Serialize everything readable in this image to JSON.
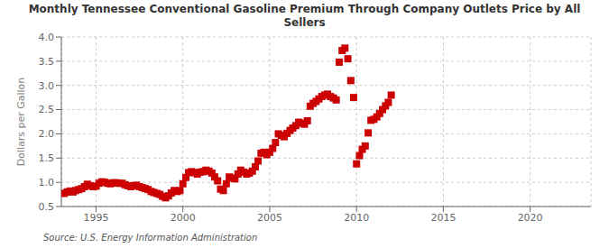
{
  "chart_data": {
    "type": "scatter",
    "title": "Monthly Tennessee Conventional Gasoline Premium Through Company Outlets Price by All\nSellers",
    "y_label": "Dollars per Gallon",
    "annotations": [
      "Source: U.S. Energy Information Administration"
    ],
    "color": "#cc0000",
    "marker": "square",
    "grid": true,
    "xlim": [
      1993.0,
      2023.5
    ],
    "ylim": [
      0.5,
      4.0
    ],
    "xticks": [
      1995,
      2000,
      2005,
      2010,
      2015,
      2020
    ],
    "yticks": [
      0.5,
      {
        "value": 1.0,
        "label": "1.0"
      },
      1.5,
      {
        "value": 2.0,
        "label": "2.0"
      },
      2.5,
      {
        "value": 3.0,
        "label": "3.0"
      },
      3.5,
      {
        "value": 4.0,
        "label": "4.0"
      }
    ],
    "x": [
      1993.17,
      1993.33,
      1993.5,
      1993.67,
      1993.83,
      1994.0,
      1994.17,
      1994.33,
      1994.5,
      1994.67,
      1994.83,
      1995.0,
      1995.17,
      1995.33,
      1995.5,
      1995.67,
      1995.83,
      1996.0,
      1996.17,
      1996.33,
      1996.5,
      1996.67,
      1996.83,
      1997.0,
      1997.17,
      1997.33,
      1997.5,
      1997.67,
      1997.83,
      1998.0,
      1998.17,
      1998.33,
      1998.5,
      1998.67,
      1998.83,
      1999.0,
      1999.17,
      1999.33,
      1999.5,
      1999.67,
      1999.83,
      2000.0,
      2000.17,
      2000.33,
      2000.5,
      2000.67,
      2000.83,
      2001.0,
      2001.17,
      2001.33,
      2001.5,
      2001.67,
      2001.83,
      2002.0,
      2002.17,
      2002.33,
      2002.5,
      2002.67,
      2002.83,
      2003.0,
      2003.17,
      2003.33,
      2003.5,
      2003.67,
      2003.83,
      2004.0,
      2004.17,
      2004.33,
      2004.5,
      2004.67,
      2004.83,
      2005.0,
      2005.17,
      2005.33,
      2005.5,
      2005.67,
      2005.83,
      2006.0,
      2006.17,
      2006.33,
      2006.5,
      2006.67,
      2006.83,
      2007.0,
      2007.17,
      2007.33,
      2007.5,
      2007.67,
      2007.83,
      2008.0,
      2008.17,
      2008.33,
      2008.5,
      2008.67,
      2008.83,
      2009.0,
      2009.17,
      2009.33,
      2009.5,
      2009.67,
      2009.83,
      2010.0,
      2010.17,
      2010.33,
      2010.5,
      2010.67,
      2010.83,
      2011.0,
      2011.17,
      2011.33,
      2011.5,
      2011.67,
      2011.83,
      2012.0
    ],
    "values": [
      0.77,
      0.8,
      0.82,
      0.8,
      0.83,
      0.85,
      0.87,
      0.91,
      0.96,
      0.93,
      0.91,
      0.92,
      0.98,
      1.01,
      1.0,
      0.98,
      0.97,
      0.99,
      0.99,
      0.98,
      0.98,
      0.95,
      0.93,
      0.91,
      0.93,
      0.94,
      0.91,
      0.89,
      0.87,
      0.85,
      0.81,
      0.79,
      0.77,
      0.75,
      0.71,
      0.68,
      0.72,
      0.78,
      0.83,
      0.81,
      0.83,
      0.97,
      1.1,
      1.2,
      1.22,
      1.2,
      1.17,
      1.21,
      1.22,
      1.25,
      1.23,
      1.19,
      1.11,
      1.03,
      0.86,
      0.83,
      0.97,
      1.11,
      1.09,
      1.07,
      1.17,
      1.25,
      1.21,
      1.17,
      1.19,
      1.23,
      1.32,
      1.44,
      1.6,
      1.62,
      1.57,
      1.62,
      1.7,
      1.82,
      2.0,
      1.97,
      1.94,
      2.01,
      2.07,
      2.12,
      2.17,
      2.24,
      2.22,
      2.2,
      2.27,
      2.57,
      2.63,
      2.67,
      2.72,
      2.77,
      2.8,
      2.82,
      2.77,
      2.74,
      2.7,
      3.48,
      3.72,
      3.77,
      3.55,
      3.1,
      2.75,
      1.38,
      1.55,
      1.68,
      1.75,
      2.02,
      2.28,
      2.3,
      2.35,
      2.42,
      2.5,
      2.58,
      2.65,
      2.8
    ]
  }
}
